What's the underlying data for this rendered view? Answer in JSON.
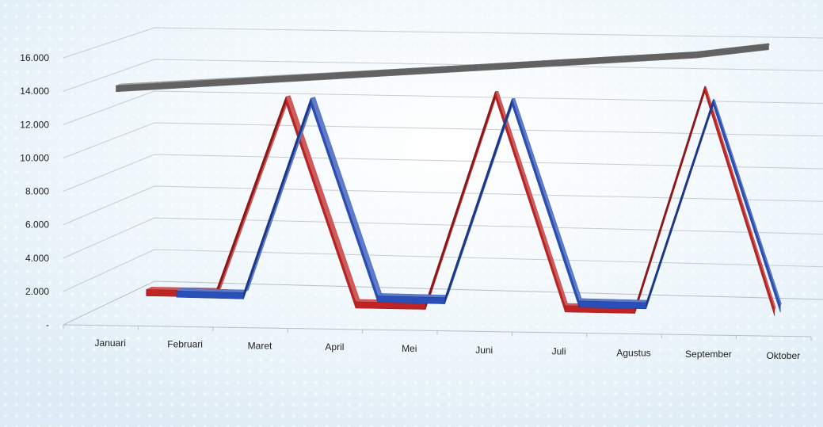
{
  "chart_data": {
    "type": "line",
    "style": "3d-ribbon",
    "categories": [
      "Januari",
      "Februari",
      "Maret",
      "April",
      "Mei",
      "Juni",
      "Juli",
      "Agustus",
      "September",
      "Oktober"
    ],
    "y_ticks": [
      "-",
      "2.000",
      "4.000",
      "6.000",
      "8.000",
      "10.000",
      "12.000",
      "14.000",
      "16.000"
    ],
    "ylim": [
      0,
      16000
    ],
    "grid": true,
    "legend": "none",
    "series": [
      {
        "color": "#2a4fb8",
        "values": [
          0,
          0,
          12000,
          0,
          0,
          12000,
          0,
          0,
          12000,
          0
        ]
      },
      {
        "color": "#bf2424",
        "values": [
          1000,
          1000,
          12500,
          500,
          500,
          12500,
          500,
          500,
          12500,
          500
        ]
      },
      {
        "color": "#8c8c8c",
        "values": [
          14000,
          14000,
          14000,
          14000,
          14000,
          14000,
          14000,
          14000,
          14000,
          14200
        ]
      }
    ]
  }
}
